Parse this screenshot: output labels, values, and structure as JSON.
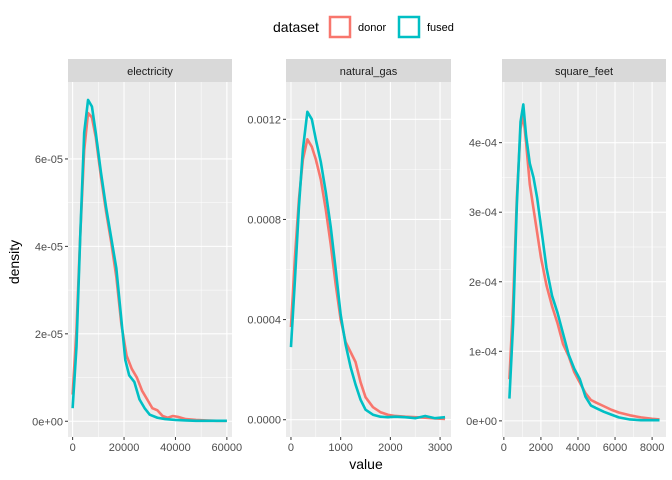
{
  "chart_data": {
    "type": "line",
    "xlabel": "value",
    "ylabel": "density",
    "legend": {
      "title": "dataset",
      "position": "top",
      "items": [
        {
          "name": "donor",
          "color": "#F8766D"
        },
        {
          "name": "fused",
          "color": "#00BFC4"
        }
      ]
    },
    "panels": [
      {
        "title": "electricity",
        "xlim": [
          -1800,
          62000
        ],
        "ylim": [
          -3.6e-06,
          7.76e-05
        ],
        "xticks": [
          0,
          20000,
          40000,
          60000
        ],
        "xtick_labels": [
          "0",
          "20000",
          "40000",
          "60000"
        ],
        "yticks": [
          0,
          2e-05,
          4e-05,
          6e-05
        ],
        "ytick_labels": [
          "0e+00",
          "2e-05",
          "4e-05",
          "6e-05"
        ],
        "series": [
          {
            "name": "donor",
            "color": "#F8766D",
            "points": [
              [
                0,
                6.1e-06
              ],
              [
                1500,
                2.1e-05
              ],
              [
                3000,
                4.3e-05
              ],
              [
                4500,
                6.2e-05
              ],
              [
                6000,
                7.05e-05
              ],
              [
                7500,
                6.95e-05
              ],
              [
                9000,
                6.5e-05
              ],
              [
                11000,
                5.6e-05
              ],
              [
                13000,
                4.8e-05
              ],
              [
                15000,
                4.1e-05
              ],
              [
                17000,
                3.3e-05
              ],
              [
                19000,
                2.2e-05
              ],
              [
                21000,
                1.5e-05
              ],
              [
                23000,
                1.2e-05
              ],
              [
                25000,
                1e-05
              ],
              [
                27000,
                7e-06
              ],
              [
                29000,
                5e-06
              ],
              [
                31000,
                3e-06
              ],
              [
                33000,
                2.5e-06
              ],
              [
                35000,
                1.2e-06
              ],
              [
                37000,
                8e-07
              ],
              [
                39000,
                1.2e-06
              ],
              [
                41000,
                1e-06
              ],
              [
                44000,
                5e-07
              ],
              [
                48000,
                3e-07
              ],
              [
                52000,
                2e-07
              ],
              [
                56000,
                1e-07
              ],
              [
                60000,
                1e-07
              ]
            ]
          },
          {
            "name": "fused",
            "color": "#00BFC4",
            "points": [
              [
                0,
                3e-06
              ],
              [
                1500,
                1.7e-05
              ],
              [
                3000,
                4.3e-05
              ],
              [
                4500,
                6.6e-05
              ],
              [
                6000,
                7.35e-05
              ],
              [
                7500,
                7.2e-05
              ],
              [
                9000,
                6.6e-05
              ],
              [
                11000,
                5.7e-05
              ],
              [
                13000,
                4.9e-05
              ],
              [
                15000,
                4.2e-05
              ],
              [
                17000,
                3.5e-05
              ],
              [
                19000,
                2.3e-05
              ],
              [
                20500,
                1.4e-05
              ],
              [
                22000,
                1.05e-05
              ],
              [
                24000,
                9e-06
              ],
              [
                26000,
                5e-06
              ],
              [
                28000,
                3e-06
              ],
              [
                30000,
                1.5e-06
              ],
              [
                33000,
                8e-07
              ],
              [
                36000,
                5e-07
              ],
              [
                40000,
                3e-07
              ],
              [
                44000,
                2e-07
              ],
              [
                48000,
                1e-07
              ],
              [
                53000,
                1e-07
              ],
              [
                57000,
                1e-07
              ],
              [
                60000,
                1e-07
              ]
            ]
          }
        ]
      },
      {
        "title": "natural_gas",
        "xlim": [
          -100,
          3220
        ],
        "ylim": [
          -6.9e-05,
          0.001349
        ],
        "xticks": [
          0,
          1000,
          2000,
          3000
        ],
        "xtick_labels": [
          "0",
          "1000",
          "2000",
          "3000"
        ],
        "yticks": [
          0,
          0.0004,
          0.0008,
          0.0012
        ],
        "ytick_labels": [
          "0.0000",
          "0.0004",
          "0.0008",
          "0.0012"
        ],
        "series": [
          {
            "name": "donor",
            "color": "#F8766D",
            "points": [
              [
                0,
                0.00037
              ],
              [
                80,
                0.00065
              ],
              [
                160,
                0.00088
              ],
              [
                240,
                0.00104
              ],
              [
                330,
                0.00112
              ],
              [
                420,
                0.00109
              ],
              [
                500,
                0.00104
              ],
              [
                600,
                0.00096
              ],
              [
                700,
                0.00084
              ],
              [
                800,
                0.0007
              ],
              [
                900,
                0.00054
              ],
              [
                1000,
                0.0004
              ],
              [
                1100,
                0.00031
              ],
              [
                1200,
                0.00027
              ],
              [
                1300,
                0.00023
              ],
              [
                1400,
                0.00015
              ],
              [
                1500,
                9e-05
              ],
              [
                1650,
                5e-05
              ],
              [
                1800,
                3e-05
              ],
              [
                1950,
                2e-05
              ],
              [
                2100,
                1.5e-05
              ],
              [
                2300,
                1.2e-05
              ],
              [
                2500,
                1e-05
              ],
              [
                2700,
                8e-06
              ],
              [
                2900,
                5e-06
              ],
              [
                3100,
                3e-06
              ]
            ]
          },
          {
            "name": "fused",
            "color": "#00BFC4",
            "points": [
              [
                0,
                0.00029
              ],
              [
                80,
                0.00056
              ],
              [
                160,
                0.00085
              ],
              [
                240,
                0.00108
              ],
              [
                330,
                0.00123
              ],
              [
                420,
                0.0012
              ],
              [
                500,
                0.00112
              ],
              [
                600,
                0.00103
              ],
              [
                700,
                0.00091
              ],
              [
                800,
                0.00077
              ],
              [
                900,
                0.0006
              ],
              [
                1000,
                0.00042
              ],
              [
                1100,
                0.0003
              ],
              [
                1200,
                0.00021
              ],
              [
                1300,
                0.00014
              ],
              [
                1400,
                8e-05
              ],
              [
                1500,
                4e-05
              ],
              [
                1650,
                2e-05
              ],
              [
                1800,
                1.2e-05
              ],
              [
                1950,
                1e-05
              ],
              [
                2100,
                1.2e-05
              ],
              [
                2300,
                1e-05
              ],
              [
                2500,
                6e-06
              ],
              [
                2700,
                1.5e-05
              ],
              [
                2900,
                6e-06
              ],
              [
                3100,
                1e-05
              ]
            ]
          }
        ]
      },
      {
        "title": "square_feet",
        "xlim": [
          -100,
          8750
        ],
        "ylim": [
          -2.32e-05,
          0.0004872
        ],
        "xticks": [
          0,
          2000,
          4000,
          6000,
          8000
        ],
        "xtick_labels": [
          "0",
          "2000",
          "4000",
          "6000",
          "8000"
        ],
        "yticks": [
          0,
          0.0001,
          0.0002,
          0.0003,
          0.0004
        ],
        "ytick_labels": [
          "0e+00",
          "1e-04",
          "2e-04",
          "3e-04",
          "4e-04"
        ],
        "series": [
          {
            "name": "donor",
            "color": "#F8766D",
            "points": [
              [
                300,
                6e-05
              ],
              [
                500,
                0.00017
              ],
              [
                700,
                0.00032
              ],
              [
                900,
                0.00042
              ],
              [
                1050,
                0.00044
              ],
              [
                1200,
                0.0004
              ],
              [
                1400,
                0.00034
              ],
              [
                1600,
                0.000305
              ],
              [
                1800,
                0.00027
              ],
              [
                2000,
                0.000235
              ],
              [
                2300,
                0.000195
              ],
              [
                2600,
                0.000165
              ],
              [
                2900,
                0.00014
              ],
              [
                3200,
                0.00011
              ],
              [
                3500,
                9.3e-05
              ],
              [
                3800,
                7e-05
              ],
              [
                4100,
                5.5e-05
              ],
              [
                4400,
                4e-05
              ],
              [
                4700,
                3e-05
              ],
              [
                5000,
                2.6e-05
              ],
              [
                5400,
                2.1e-05
              ],
              [
                5800,
                1.6e-05
              ],
              [
                6200,
                1.2e-05
              ],
              [
                6800,
                8e-06
              ],
              [
                7400,
                5e-06
              ],
              [
                8000,
                3e-06
              ],
              [
                8400,
                2e-06
              ]
            ]
          },
          {
            "name": "fused",
            "color": "#00BFC4",
            "points": [
              [
                300,
                3.2e-05
              ],
              [
                500,
                0.00014
              ],
              [
                700,
                0.00031
              ],
              [
                900,
                0.00043
              ],
              [
                1050,
                0.000455
              ],
              [
                1200,
                0.00041
              ],
              [
                1400,
                0.00037
              ],
              [
                1600,
                0.00035
              ],
              [
                1800,
                0.00032
              ],
              [
                2000,
                0.00028
              ],
              [
                2300,
                0.00022
              ],
              [
                2600,
                0.00018
              ],
              [
                2900,
                0.000155
              ],
              [
                3200,
                0.000125
              ],
              [
                3500,
                9.5e-05
              ],
              [
                3800,
                7.5e-05
              ],
              [
                4100,
                6e-05
              ],
              [
                4400,
                3.5e-05
              ],
              [
                4700,
                2.2e-05
              ],
              [
                5000,
                1.8e-05
              ],
              [
                5400,
                1.3e-05
              ],
              [
                5800,
                9e-06
              ],
              [
                6200,
                5e-06
              ],
              [
                6800,
                2e-06
              ],
              [
                7400,
                1e-06
              ],
              [
                8000,
                1e-06
              ],
              [
                8400,
                1e-06
              ]
            ]
          }
        ]
      }
    ]
  }
}
